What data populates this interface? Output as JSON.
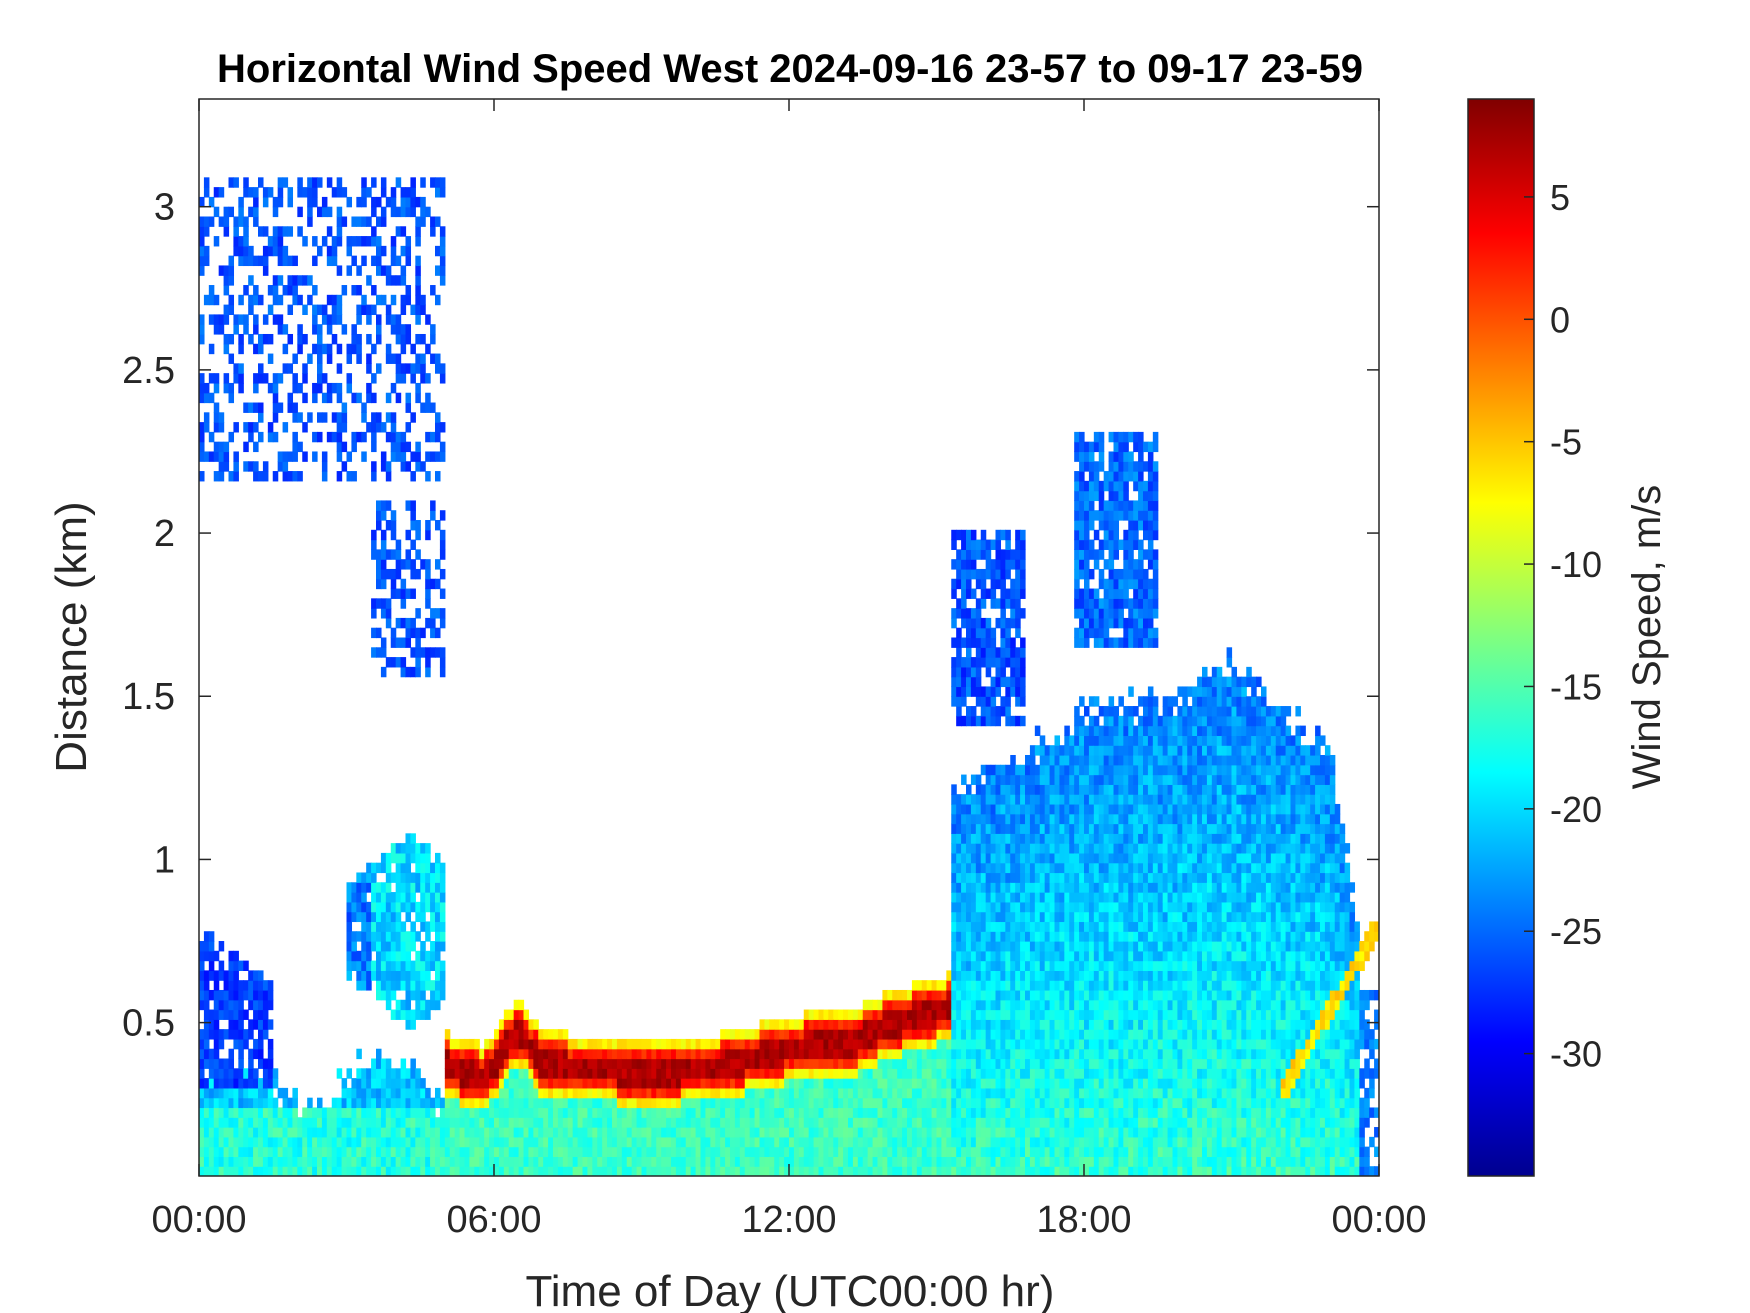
{
  "chart_data": {
    "type": "heatmap",
    "title": "Horizontal Wind Speed West 2024-09-16 23-57 to 09-17 23-59",
    "xlabel": "Time of Day (UTC00:00 hr)",
    "ylabel": "Distance (km)",
    "colorbar_label": "Wind Speed, m/s",
    "x_units": "hours",
    "xlim": [
      0,
      24
    ],
    "ylim": [
      0.03,
      3.33
    ],
    "clim": [
      -35,
      9
    ],
    "x_ticks": [
      {
        "value": 0,
        "label": "00:00"
      },
      {
        "value": 6,
        "label": "06:00"
      },
      {
        "value": 12,
        "label": "12:00"
      },
      {
        "value": 18,
        "label": "18:00"
      },
      {
        "value": 24,
        "label": "00:00"
      }
    ],
    "y_ticks": [
      {
        "value": 0.5,
        "label": "0.5"
      },
      {
        "value": 1,
        "label": "1"
      },
      {
        "value": 1.5,
        "label": "1.5"
      },
      {
        "value": 2,
        "label": "2"
      },
      {
        "value": 2.5,
        "label": "2.5"
      },
      {
        "value": 3,
        "label": "3"
      }
    ],
    "colorbar_ticks": [
      {
        "value": 5,
        "label": "5"
      },
      {
        "value": 0,
        "label": "0"
      },
      {
        "value": -5,
        "label": "-5"
      },
      {
        "value": -10,
        "label": "-10"
      },
      {
        "value": -15,
        "label": "-15"
      },
      {
        "value": -20,
        "label": "-20"
      },
      {
        "value": -25,
        "label": "-25"
      },
      {
        "value": -30,
        "label": "-30"
      }
    ],
    "colormap": "jet",
    "grid": false,
    "regions": [
      {
        "name": "low-level-flow",
        "x": [
          0,
          24
        ],
        "y": [
          0.03,
          0.35
        ],
        "value": -17
      },
      {
        "name": "early-morning-layer",
        "x": [
          0,
          1.5
        ],
        "y": [
          0.35,
          0.8
        ],
        "value": -27
      },
      {
        "name": "morning-lobe",
        "x": [
          3.0,
          5.0
        ],
        "y": [
          0.45,
          1.05
        ],
        "value": -20
      },
      {
        "name": "elevated-weak-wind-band",
        "x": [
          5.0,
          15.3
        ],
        "y": [
          0.28,
          0.58
        ],
        "value": 6
      },
      {
        "name": "upper-layer-night",
        "x": [
          0,
          5.0
        ],
        "y": [
          2.2,
          3.1
        ],
        "value": -27
      },
      {
        "name": "afternoon-mixed-layer",
        "x": [
          15.3,
          23.5
        ],
        "y": [
          0.35,
          1.65
        ],
        "value": -20
      },
      {
        "name": "afternoon-upper-cells",
        "x": [
          15.3,
          19.5
        ],
        "y": [
          1.4,
          2.4
        ],
        "value": -26
      },
      {
        "name": "late-evening-streak",
        "x": [
          22.0,
          24.0
        ],
        "y": [
          0.25,
          0.8
        ],
        "value": -6
      }
    ]
  }
}
